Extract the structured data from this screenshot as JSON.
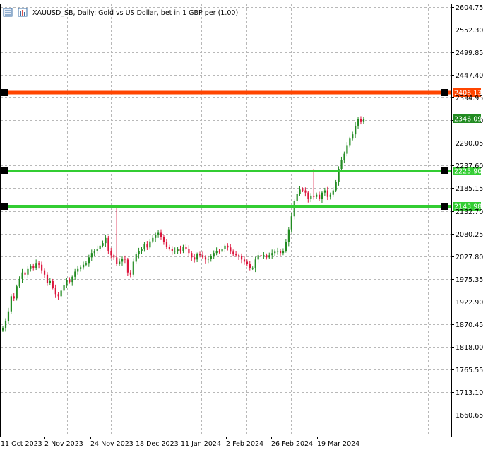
{
  "header": {
    "title": "XAUUSD_SB, Daily:  Gold vs US Dollar, bet in 1 GBP per (1.00)",
    "icons": [
      "chart-menu-icon",
      "instrument-icon"
    ]
  },
  "price_axis": {
    "ticks": [
      "2604.75",
      "2552.30",
      "2499.85",
      "2447.40",
      "2394.95",
      "2342.50",
      "2290.05",
      "2237.60",
      "2185.15",
      "2132.70",
      "2080.25",
      "2027.80",
      "1975.35",
      "1922.90",
      "1870.45",
      "1818.00",
      "1765.55",
      "1713.10",
      "1660.65"
    ],
    "current_price": "2346.09"
  },
  "time_axis": {
    "labels": [
      "11 Oct 2023",
      "2 Nov 2023",
      "24 Nov 2023",
      "18 Dec 2023",
      "11 Jan 2024",
      "2 Feb 2024",
      "26 Feb 2024",
      "19 Mar 2024"
    ]
  },
  "horizontal_lines": [
    {
      "name": "resistance-line",
      "price": 2406.13,
      "label": "2406.13",
      "color": "#ff4500"
    },
    {
      "name": "support-line-1",
      "price": 2225.9,
      "label": "2225.90",
      "color": "#32cd32"
    },
    {
      "name": "support-line-2",
      "price": 2143.98,
      "label": "2143.98",
      "color": "#32cd32"
    }
  ],
  "colors": {
    "bull_candle": "#228b22",
    "bear_candle": "#dc143c",
    "current_price_line": "#228b22",
    "grid": "#b8b8b8"
  },
  "chart_data": {
    "type": "candlestick",
    "ylim": [
      1630,
      2610
    ],
    "price_series_closes": [
      1862,
      1878,
      1900,
      1935,
      1930,
      1958,
      1975,
      1990,
      1985,
      1998,
      2005,
      2000,
      2012,
      2008,
      1995,
      1985,
      1965,
      1970,
      1955,
      1940,
      1935,
      1948,
      1960,
      1972,
      1968,
      1980,
      1992,
      1998,
      2002,
      2008,
      2012,
      2025,
      2035,
      2040,
      2045,
      2052,
      2058,
      2070,
      2040,
      2030,
      2025,
      2010,
      2015,
      2022,
      2020,
      1990,
      1985,
      2015,
      2032,
      2040,
      2045,
      2055,
      2048,
      2062,
      2070,
      2078,
      2082,
      2072,
      2060,
      2050,
      2045,
      2040,
      2040,
      2045,
      2040,
      2050,
      2045,
      2035,
      2025,
      2020,
      2032,
      2030,
      2025,
      2020,
      2022,
      2028,
      2035,
      2040,
      2038,
      2045,
      2052,
      2048,
      2038,
      2032,
      2030,
      2028,
      2020,
      2015,
      2010,
      2000,
      2000,
      2020,
      2030,
      2028,
      2030,
      2025,
      2030,
      2035,
      2038,
      2040,
      2035,
      2040,
      2060,
      2090,
      2120,
      2155,
      2172,
      2182,
      2180,
      2175,
      2160,
      2168,
      2165,
      2170,
      2160,
      2175,
      2180,
      2165,
      2170,
      2180,
      2200,
      2230,
      2250,
      2265,
      2285,
      2300,
      2310,
      2330,
      2345,
      2340,
      2346
    ]
  }
}
